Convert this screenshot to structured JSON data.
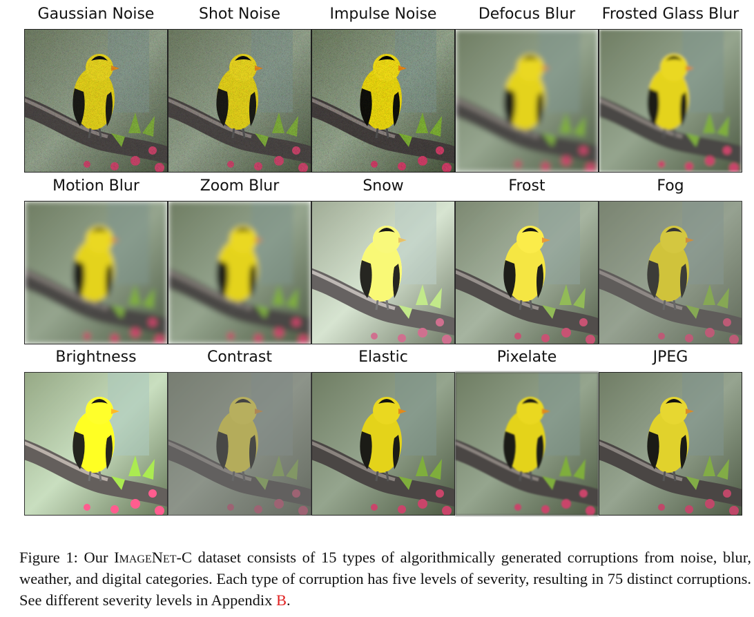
{
  "figure": {
    "panels": [
      {
        "label": "Gaussian Noise"
      },
      {
        "label": "Shot Noise"
      },
      {
        "label": "Impulse Noise"
      },
      {
        "label": "Defocus Blur"
      },
      {
        "label": "Frosted Glass Blur"
      },
      {
        "label": "Motion Blur"
      },
      {
        "label": "Zoom Blur"
      },
      {
        "label": "Snow"
      },
      {
        "label": "Frost"
      },
      {
        "label": "Fog"
      },
      {
        "label": "Brightness"
      },
      {
        "label": "Contrast"
      },
      {
        "label": "Elastic"
      },
      {
        "label": "Pixelate"
      },
      {
        "label": "JPEG"
      }
    ]
  },
  "caption": {
    "lead": "Figure 1: Our ",
    "dataset": "ImageNet-C",
    "body": " dataset consists of 15 types of algorithmically generated corruptions from noise, blur, weather, and digital categories. Each type of corruption has five levels of severity, resulting in 75 distinct corruptions. See different severity levels in Appendix ",
    "ref": "B",
    "end": "."
  }
}
